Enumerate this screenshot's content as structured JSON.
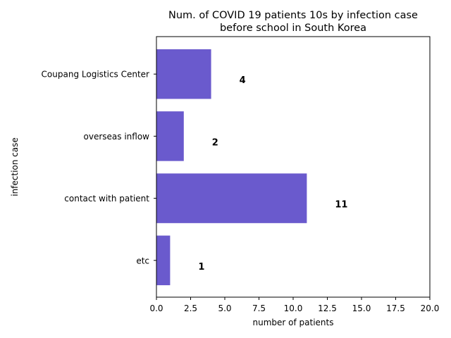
{
  "chart_data": {
    "type": "bar",
    "orientation": "horizontal",
    "title_lines": [
      "Num. of COVID 19 patients 10s by infection case",
      "before school in South Korea"
    ],
    "xlabel": "number of patients",
    "ylabel": "infection case",
    "categories": [
      "etc",
      "contact with patient",
      "overseas inflow",
      "Coupang Logistics Center"
    ],
    "values": [
      1,
      11,
      2,
      4
    ],
    "data_labels": [
      "1",
      "11",
      "2",
      "4"
    ],
    "xlim": [
      0,
      20
    ],
    "xticks": [
      0,
      2.5,
      5,
      7.5,
      10,
      12.5,
      15,
      17.5,
      20
    ],
    "xtick_labels": [
      "0.0",
      "2.5",
      "5.0",
      "7.5",
      "10.0",
      "12.5",
      "15.0",
      "17.5",
      "20.0"
    ],
    "bar_color": "#6a5acd",
    "grid": false,
    "legend": "none"
  }
}
